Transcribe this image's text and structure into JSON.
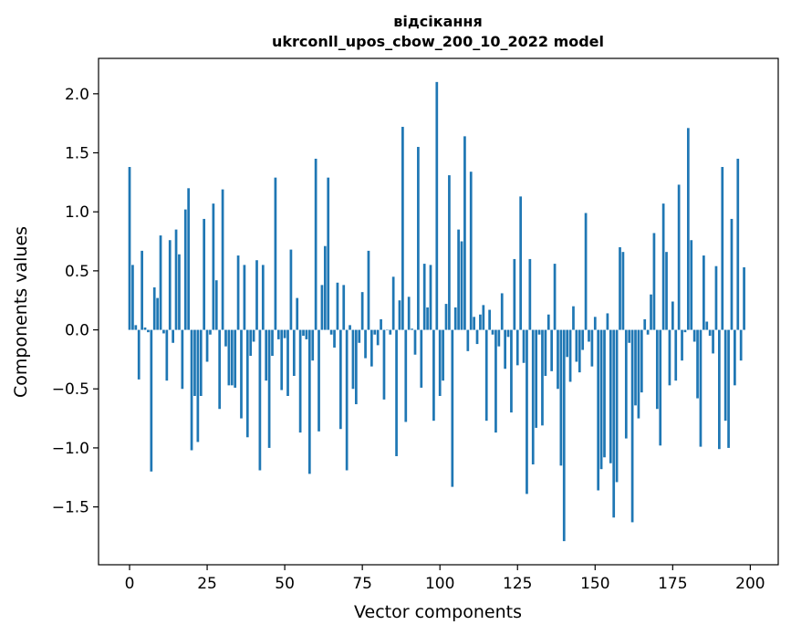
{
  "chart_data": {
    "type": "bar",
    "title": "відсікання",
    "subtitle": "ukrconll_upos_cbow_200_10_2022 model",
    "xlabel": "Vector components",
    "ylabel": "Components values",
    "xlim": [
      -10,
      209
    ],
    "ylim": [
      -1.99,
      2.3
    ],
    "xticks": [
      0,
      25,
      50,
      75,
      100,
      125,
      150,
      175,
      200
    ],
    "yticks": [
      2.0,
      1.5,
      1.0,
      0.5,
      0.0,
      -0.5,
      -1.0,
      -1.5
    ],
    "ytick_labels": [
      "2.0",
      "1.5",
      "1.0",
      "0.5",
      "0.0",
      "−0.5",
      "−1.0",
      "−1.5"
    ],
    "bar_color": "#1f77b4",
    "values": [
      1.38,
      0.55,
      0.04,
      -0.42,
      0.67,
      0.02,
      -0.02,
      -1.2,
      0.36,
      0.27,
      0.8,
      -0.03,
      -0.43,
      0.76,
      -0.11,
      0.85,
      0.64,
      -0.5,
      1.02,
      1.2,
      -1.02,
      -0.56,
      -0.95,
      -0.56,
      0.94,
      -0.27,
      -0.04,
      1.07,
      0.42,
      -0.67,
      1.19,
      -0.14,
      -0.47,
      -0.47,
      -0.49,
      0.63,
      -0.75,
      0.55,
      -0.91,
      -0.22,
      -0.1,
      0.59,
      -1.19,
      0.55,
      -0.43,
      -1.0,
      -0.22,
      1.29,
      -0.08,
      -0.51,
      -0.07,
      -0.56,
      0.68,
      -0.39,
      0.27,
      -0.87,
      -0.05,
      -0.08,
      -1.22,
      -0.26,
      1.45,
      -0.86,
      0.38,
      0.71,
      1.29,
      -0.04,
      -0.15,
      0.4,
      -0.84,
      0.38,
      -1.19,
      0.04,
      -0.5,
      -0.63,
      -0.11,
      0.32,
      -0.24,
      0.67,
      -0.31,
      -0.04,
      -0.13,
      0.09,
      -0.59,
      0.0,
      -0.04,
      0.45,
      -1.07,
      0.25,
      1.72,
      -0.78,
      0.28,
      0.01,
      -0.21,
      1.55,
      -0.49,
      0.56,
      0.19,
      0.55,
      -0.77,
      2.1,
      -0.56,
      -0.43,
      0.22,
      1.31,
      -1.33,
      0.19,
      0.85,
      0.75,
      1.64,
      -0.18,
      1.34,
      0.11,
      -0.12,
      0.13,
      0.21,
      -0.77,
      0.17,
      -0.04,
      -0.87,
      -0.14,
      0.31,
      -0.33,
      -0.06,
      -0.7,
      0.6,
      -0.3,
      1.13,
      -0.28,
      -1.39,
      0.6,
      -1.14,
      -0.83,
      -0.04,
      -0.81,
      -0.39,
      0.13,
      -0.35,
      0.56,
      -0.5,
      -1.15,
      -1.79,
      -0.23,
      -0.44,
      0.2,
      -0.27,
      -0.36,
      -0.17,
      0.99,
      -0.1,
      -0.31,
      0.11,
      -1.36,
      -1.18,
      -1.08,
      0.14,
      -1.13,
      -1.59,
      -1.29,
      0.7,
      0.66,
      -0.92,
      -0.11,
      -1.63,
      -0.64,
      -0.75,
      -0.53,
      0.09,
      -0.04,
      0.3,
      0.82,
      -0.67,
      -0.98,
      1.07,
      0.66,
      -0.47,
      0.24,
      -0.43,
      1.23,
      -0.26,
      -0.02,
      1.71,
      0.76,
      -0.1,
      -0.58,
      -0.99,
      0.63,
      0.07,
      -0.05,
      -0.2,
      0.54,
      -1.01,
      1.38,
      -0.77,
      -1.0,
      0.94,
      -0.47,
      1.45,
      -0.26,
      0.53
    ]
  }
}
